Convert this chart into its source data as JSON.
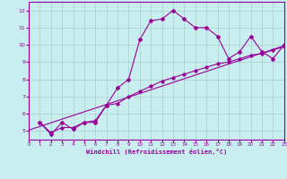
{
  "xlabel": "Windchill (Refroidissement éolien,°C)",
  "background_color": "#c8eef0",
  "grid_color": "#aacccc",
  "line_color": "#990099",
  "xlim": [
    0,
    23
  ],
  "ylim": [
    4.5,
    12.5
  ],
  "xticks": [
    0,
    1,
    2,
    3,
    4,
    5,
    6,
    7,
    8,
    9,
    10,
    11,
    12,
    13,
    14,
    15,
    16,
    17,
    18,
    19,
    20,
    21,
    22,
    23
  ],
  "yticks": [
    5,
    6,
    7,
    8,
    9,
    10,
    11,
    12
  ],
  "lines": [
    {
      "x": [
        1,
        2,
        3,
        4,
        5,
        6,
        7,
        8,
        9,
        10,
        11,
        12,
        13,
        14,
        15,
        16,
        17,
        18,
        19,
        20,
        21,
        22,
        23
      ],
      "y": [
        5.5,
        4.8,
        5.5,
        5.1,
        5.5,
        5.5,
        6.5,
        7.5,
        8.0,
        10.3,
        11.4,
        11.5,
        12.0,
        11.5,
        11.0,
        11.0,
        10.5,
        9.2,
        9.6,
        10.5,
        9.6,
        9.2,
        10.0
      ]
    },
    {
      "x": [
        1,
        2,
        3,
        4,
        5,
        6,
        7,
        8,
        9,
        10,
        11,
        12,
        13,
        14,
        15,
        16,
        17,
        18,
        19,
        20,
        21,
        22,
        23
      ],
      "y": [
        5.5,
        4.9,
        5.2,
        5.2,
        5.5,
        5.6,
        6.5,
        6.6,
        7.0,
        7.3,
        7.6,
        7.9,
        8.1,
        8.3,
        8.5,
        8.7,
        8.9,
        9.0,
        9.2,
        9.4,
        9.5,
        9.7,
        9.9
      ]
    },
    {
      "x": [
        0,
        23
      ],
      "y": [
        5.05,
        9.95
      ]
    }
  ]
}
